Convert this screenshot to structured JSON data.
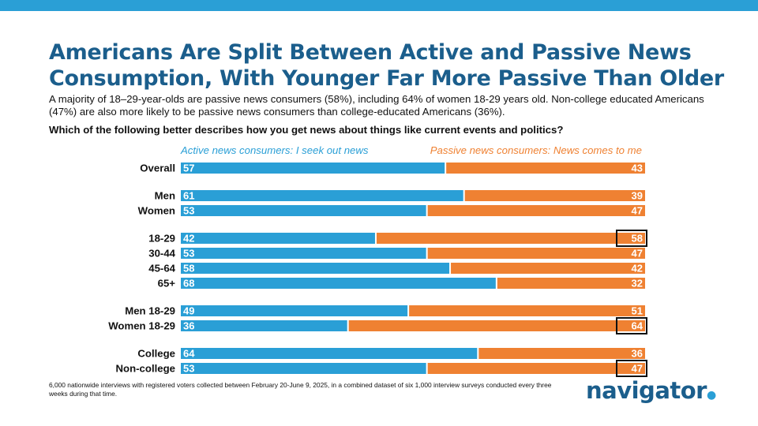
{
  "header": {
    "title": "Americans Are Split Between Active and Passive News Consumption, With Younger Far More Passive Than Older",
    "subtitle": "A majority of 18–29-year-olds are passive news consumers (58%), including 64% of women 18-29 years old. Non-college educated Americans (47%) are also more likely to be passive news consumers than college-educated Americans (36%).",
    "question": "Which of the following better describes how you get news about things like current events and politics?"
  },
  "colors": {
    "active": "#2a9fd6",
    "passive": "#ef8132",
    "title": "#1b5e8c",
    "band": "#2a9fd6"
  },
  "chart_data": {
    "type": "bar",
    "stacked": true,
    "orientation": "horizontal",
    "xlim": [
      0,
      100
    ],
    "categories": [
      "Overall",
      "Men",
      "Women",
      "18-29",
      "30-44",
      "45-64",
      "65+",
      "Men 18-29",
      "Women 18-29",
      "College",
      "Non-college"
    ],
    "groups": [
      [
        "Overall"
      ],
      [
        "Men",
        "Women"
      ],
      [
        "18-29",
        "30-44",
        "45-64",
        "65+"
      ],
      [
        "Men 18-29",
        "Women 18-29"
      ],
      [
        "College",
        "Non-college"
      ]
    ],
    "series": [
      {
        "name": "Active news consumers: I seek out news",
        "values": [
          57,
          61,
          53,
          42,
          53,
          58,
          68,
          49,
          36,
          64,
          53
        ]
      },
      {
        "name": "Passive news consumers: News comes to me",
        "values": [
          43,
          39,
          47,
          58,
          47,
          42,
          32,
          51,
          64,
          36,
          47
        ]
      }
    ],
    "highlighted": [
      "18-29",
      "Women 18-29",
      "Non-college"
    ],
    "grid": false,
    "legend": "top"
  },
  "footer": {
    "note": "6,000 nationwide interviews with registered voters collected between February 20-June 9, 2025, in a combined dataset of six 1,000 interview surveys conducted every three weeks during that time.",
    "logo": "navigator",
    "logo_mark": "●"
  }
}
